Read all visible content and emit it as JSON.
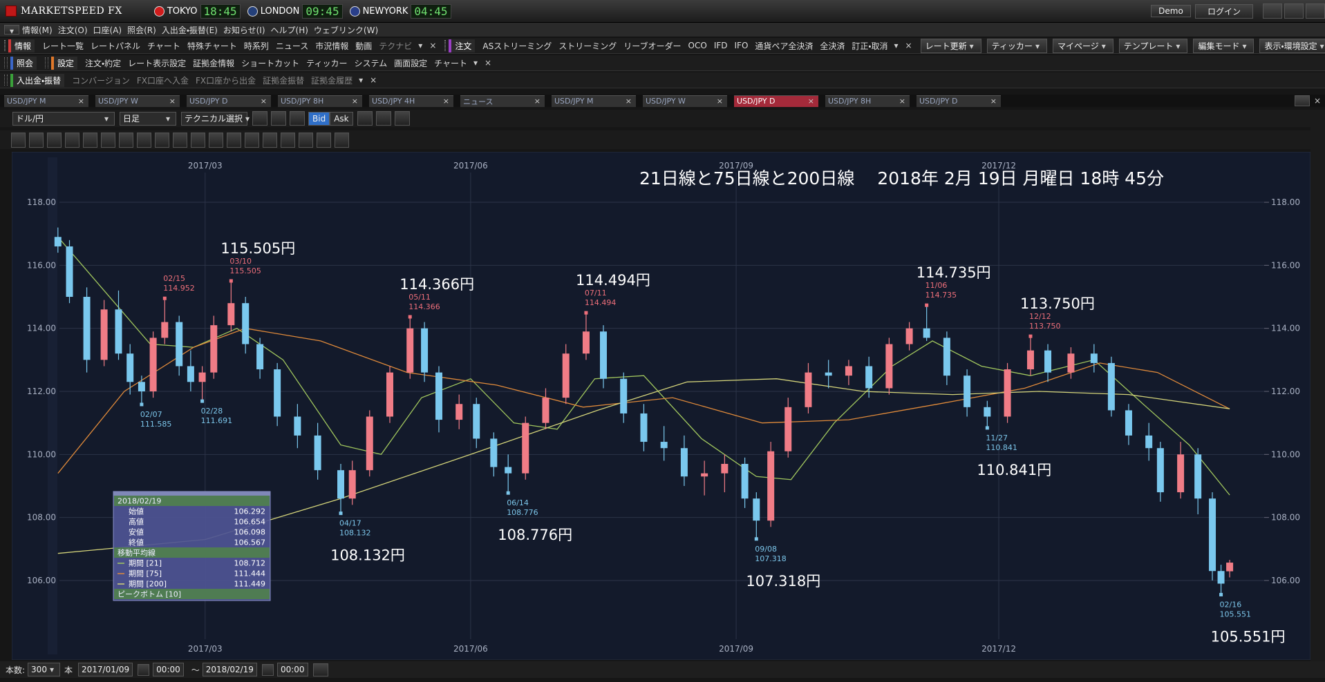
{
  "app": {
    "logo": "MARKETSPEED FX",
    "clocks": [
      {
        "city": "TOKYO",
        "time": "18:45"
      },
      {
        "city": "LONDON",
        "time": "09:45"
      },
      {
        "city": "NEWYORK",
        "time": "04:45"
      }
    ],
    "account": [
      "Demo",
      "ログイン"
    ],
    "menu": [
      "情報(M)",
      "注文(O)",
      "口座(A)",
      "照会(R)",
      "入出金・振替(E)",
      "お知らせ(I)",
      "ヘルプ(H)",
      "ウェブリンク(W)"
    ],
    "toolbars": [
      {
        "groups": [
          {
            "label": "情報",
            "color": "#d03a3a",
            "items": [
              "レート一覧",
              "レートパネル",
              "チャート",
              "特殊チャート",
              "時系列",
              "ニュース",
              "市況情報",
              "動画",
              "テクナビ"
            ]
          },
          {
            "label": "注文",
            "color": "#9a3fc4",
            "items": [
              "ASストリーミング",
              "ストリーミング",
              "リーブオーダー",
              "OCO",
              "IFD",
              "IFO",
              "通貨ペア全決済",
              "全決済",
              "訂正・取消"
            ]
          }
        ],
        "right": [
          "レート更新",
          "ティッカー",
          "マイページ",
          "テンプレート",
          "編集モード",
          "表示・環境設定"
        ]
      },
      {
        "groups": [
          {
            "label": "照会",
            "color": "#3a66c8",
            "items": []
          },
          {
            "label": "設定",
            "color": "#e0782a",
            "items": [
              "注文・約定",
              "レート表示設定",
              "証拠金情報",
              "ショートカット",
              "ティッカー",
              "システム",
              "画面設定",
              "チャート"
            ]
          }
        ],
        "right": []
      },
      {
        "groups": [
          {
            "label": "入出金・振替",
            "color": "#3aa03a",
            "items": [
              "コンバージョン",
              "FX口座へ入金",
              "FX口座から出金",
              "証拠金振替",
              "証拠金履歴"
            ]
          }
        ],
        "right": []
      }
    ],
    "tabs": [
      "USD/JPY M",
      "USD/JPY W",
      "USD/JPY D",
      "USD/JPY 8H",
      "USD/JPY 4H",
      "ニュース",
      "USD/JPY M",
      "USD/JPY W",
      "USD/JPY D",
      "USD/JPY 8H",
      "USD/JPY D"
    ],
    "active_tab": 8,
    "chart_toolbar": {
      "pair": "ドル/円",
      "period": "日足",
      "technical": "テクニカル選択",
      "bid": "Bid",
      "ask": "Ask"
    },
    "info": {
      "labels": [
        "始値",
        "高値",
        "安値",
        "終値"
      ],
      "ma_header": "移動平均線",
      "peak": "ピークボトム [10]"
    },
    "bottom": {
      "count_label": "本数:",
      "count": 300,
      "unit": "本",
      "from_time": "00:00",
      "tilde": "〜",
      "to_time": "00:00"
    }
  },
  "chart_data": {
    "type": "candlestick",
    "title": "21日線と75日線と200日線　 2018年 2月 19日 月曜日 18時 45分",
    "xlim": [
      "2016/12/24",
      "2018/03/19"
    ],
    "xticks": [
      {
        "value": "2017/03/01",
        "label": "2017/03"
      },
      {
        "value": "2017/06/01",
        "label": "2017/06"
      },
      {
        "value": "2017/09/01",
        "label": "2017/09"
      },
      {
        "value": "2017/12/01",
        "label": "2017/12"
      }
    ],
    "ylim": [
      103.48,
      119.6
    ],
    "yticks": [
      {
        "value": 106,
        "label": "106.00"
      },
      {
        "value": 108,
        "label": "108.00"
      },
      {
        "value": 110,
        "label": "110.00"
      },
      {
        "value": 112,
        "label": "112.00"
      },
      {
        "value": 114,
        "label": "114.00"
      },
      {
        "value": 116,
        "label": "116.00"
      },
      {
        "value": 118,
        "label": "118.00"
      }
    ],
    "grid": true,
    "up_color": "#f07c86",
    "down_color": "#7ac8ee",
    "candles": {
      "date": [
        "2017/01/09",
        "2017/01/13",
        "2017/01/19",
        "2017/01/25",
        "2017/01/30",
        "2017/02/03",
        "2017/02/07",
        "2017/02/11",
        "2017/02/15",
        "2017/02/20",
        "2017/02/24",
        "2017/02/28",
        "2017/03/04",
        "2017/03/10",
        "2017/03/15",
        "2017/03/20",
        "2017/03/26",
        "2017/04/02",
        "2017/04/09",
        "2017/04/17",
        "2017/04/21",
        "2017/04/27",
        "2017/05/04",
        "2017/05/11",
        "2017/05/16",
        "2017/05/21",
        "2017/05/28",
        "2017/06/03",
        "2017/06/09",
        "2017/06/14",
        "2017/06/20",
        "2017/06/27",
        "2017/07/04",
        "2017/07/11",
        "2017/07/17",
        "2017/07/24",
        "2017/07/31",
        "2017/08/07",
        "2017/08/14",
        "2017/08/21",
        "2017/08/28",
        "2017/09/04",
        "2017/09/08",
        "2017/09/13",
        "2017/09/19",
        "2017/09/26",
        "2017/10/03",
        "2017/10/10",
        "2017/10/17",
        "2017/10/24",
        "2017/10/31",
        "2017/11/06",
        "2017/11/13",
        "2017/11/20",
        "2017/11/27",
        "2017/12/04",
        "2017/12/12",
        "2017/12/18",
        "2017/12/26",
        "2018/01/03",
        "2018/01/09",
        "2018/01/15",
        "2018/01/22",
        "2018/01/26",
        "2018/02/02",
        "2018/02/08",
        "2018/02/13",
        "2018/02/16",
        "2018/02/19"
      ],
      "open": [
        116.9,
        116.6,
        115,
        113,
        114.6,
        113.2,
        112.3,
        112,
        113.7,
        114.2,
        112.8,
        112.3,
        112.6,
        114.1,
        114.8,
        113.5,
        112.7,
        111.2,
        110.6,
        109.5,
        108.6,
        109.5,
        111.2,
        112.6,
        114,
        112.6,
        111.1,
        111.6,
        110.5,
        109.6,
        109.4,
        111,
        111.8,
        113.2,
        113.9,
        112.4,
        111.3,
        110.4,
        110.2,
        109.3,
        109.4,
        109.7,
        108.6,
        107.9,
        110.1,
        111.5,
        112.6,
        112.5,
        112.8,
        112.1,
        113.5,
        114,
        113.7,
        112.5,
        111.5,
        111.2,
        112.7,
        113.3,
        112.6,
        113.2,
        112.9,
        111.4,
        110.6,
        110.2,
        108.8,
        110,
        108.6,
        106.3,
        106.292
      ],
      "high": [
        117.2,
        116.8,
        115.3,
        114.9,
        115.2,
        113.5,
        112.5,
        113.9,
        114.952,
        114.4,
        113.3,
        112.8,
        114.4,
        115.505,
        115,
        113.7,
        112.9,
        111.6,
        111,
        109.7,
        109.8,
        111.4,
        112.8,
        114.366,
        114.2,
        112.8,
        111.9,
        111.8,
        110.7,
        110,
        111.2,
        112.1,
        113.5,
        114.494,
        114.1,
        112.6,
        111.6,
        110.9,
        110.6,
        109.8,
        110,
        109.9,
        108.8,
        110.4,
        111.8,
        112.9,
        113,
        113,
        113.1,
        113.7,
        114.2,
        114.735,
        113.9,
        112.7,
        111.7,
        112.9,
        113.75,
        113.5,
        113.4,
        113.5,
        113.1,
        111.6,
        111,
        110.4,
        110.4,
        110.2,
        108.8,
        106.5,
        106.654
      ],
      "low": [
        116.4,
        114.8,
        112.6,
        112.8,
        113,
        111.9,
        111.585,
        111.8,
        113.5,
        112.5,
        112,
        111.691,
        112.4,
        113.9,
        113.2,
        112.4,
        110.9,
        110.2,
        109.2,
        108.132,
        108.4,
        109.3,
        111,
        112.4,
        112.3,
        110.7,
        110.8,
        110.2,
        109.3,
        108.776,
        109.2,
        110.8,
        111.6,
        113,
        112.1,
        111,
        110.1,
        109.8,
        109,
        108.7,
        108.8,
        108.3,
        107.318,
        107.7,
        109.9,
        111.3,
        112.1,
        112.2,
        111.8,
        111.9,
        113.3,
        113.6,
        112.2,
        111.2,
        110.841,
        111,
        112.5,
        112.3,
        112.4,
        112.6,
        111.2,
        110.3,
        109.8,
        108.5,
        108.6,
        108.1,
        106,
        105.551,
        106.098
      ],
      "close": [
        116.6,
        115,
        113,
        114.6,
        113.2,
        112.3,
        112,
        113.7,
        114.2,
        112.8,
        112.3,
        112.6,
        114.1,
        114.8,
        113.5,
        112.7,
        111.2,
        110.6,
        109.5,
        108.6,
        109.5,
        111.2,
        112.6,
        114,
        112.6,
        111.1,
        111.6,
        110.5,
        109.6,
        109.4,
        111,
        111.8,
        113.2,
        113.9,
        112.4,
        111.3,
        110.4,
        110.2,
        109.3,
        109.4,
        109.7,
        108.6,
        107.9,
        110.1,
        111.5,
        112.6,
        112.5,
        112.8,
        112.1,
        113.5,
        114,
        113.7,
        112.5,
        111.5,
        111.2,
        112.7,
        113.3,
        112.6,
        113.2,
        112.9,
        111.4,
        110.6,
        110.2,
        108.8,
        110,
        108.6,
        106.3,
        105.9,
        106.567
      ]
    },
    "series": [
      {
        "name": "期間 [21]",
        "color": "#a2c85e",
        "x": [
          "2017/01/09",
          "2017/01/25",
          "2017/02/10",
          "2017/02/25",
          "2017/03/12",
          "2017/03/28",
          "2017/04/17",
          "2017/05/01",
          "2017/05/15",
          "2017/06/01",
          "2017/06/16",
          "2017/07/01",
          "2017/07/14",
          "2017/07/31",
          "2017/08/20",
          "2017/09/08",
          "2017/09/20",
          "2017/10/05",
          "2017/10/25",
          "2017/11/08",
          "2017/11/25",
          "2017/12/12",
          "2018/01/03",
          "2018/01/20",
          "2018/02/05",
          "2018/02/19"
        ],
        "values": [
          116.9,
          115.2,
          113.5,
          113.4,
          114,
          113,
          110.3,
          110,
          111.8,
          112.4,
          111,
          110.8,
          112.4,
          112.5,
          110.5,
          109.3,
          109.2,
          111,
          112.8,
          113.6,
          112.8,
          112.5,
          113,
          111.6,
          110.3,
          108.712
        ]
      },
      {
        "name": "期間 [75]",
        "color": "#e08a3a",
        "x": [
          "2017/01/09",
          "2017/02/01",
          "2017/02/25",
          "2017/03/15",
          "2017/04/10",
          "2017/05/10",
          "2017/06/10",
          "2017/07/10",
          "2017/08/10",
          "2017/09/10",
          "2017/10/10",
          "2017/11/10",
          "2017/12/10",
          "2018/01/05",
          "2018/01/25",
          "2018/02/19"
        ],
        "values": [
          109.4,
          112,
          113.4,
          114,
          113.6,
          112.6,
          112.2,
          111.5,
          111.8,
          111,
          111.1,
          111.6,
          112.1,
          112.9,
          112.6,
          111.444
        ]
      },
      {
        "name": "期間 [200]",
        "color": "#d4d47a",
        "x": [
          "2017/01/09",
          "2017/03/01",
          "2017/04/17",
          "2017/06/01",
          "2017/07/15",
          "2017/08/15",
          "2017/09/15",
          "2017/10/15",
          "2017/11/15",
          "2017/12/15",
          "2018/01/15",
          "2018/02/19"
        ],
        "values": [
          106.86,
          107.3,
          108.6,
          110,
          111.4,
          112.3,
          112.4,
          112,
          111.9,
          112,
          111.9,
          111.449
        ]
      }
    ],
    "annotations": [
      {
        "date": "02/07",
        "price": "111.585",
        "type": "low"
      },
      {
        "date": "02/15",
        "price": "114.952",
        "type": "high"
      },
      {
        "date": "02/28",
        "price": "111.691",
        "type": "low"
      },
      {
        "date": "03/10",
        "price": "115.505",
        "type": "high",
        "big": "115.505円"
      },
      {
        "date": "04/17",
        "price": "108.132",
        "type": "low",
        "big": "108.132円"
      },
      {
        "date": "05/11",
        "price": "114.366",
        "type": "high",
        "big": "114.366円"
      },
      {
        "date": "06/14",
        "price": "108.776",
        "type": "low",
        "big": "108.776円"
      },
      {
        "date": "07/11",
        "price": "114.494",
        "type": "high",
        "big": "114.494円"
      },
      {
        "date": "09/08",
        "price": "107.318",
        "type": "low",
        "big": "107.318円"
      },
      {
        "date": "11/06",
        "price": "114.735",
        "type": "high",
        "big": "114.735円"
      },
      {
        "date": "11/27",
        "price": "110.841",
        "type": "low",
        "big": "110.841円"
      },
      {
        "date": "12/12",
        "price": "113.750",
        "type": "high",
        "big": "113.750円"
      },
      {
        "date": "02/16",
        "price": "105.551",
        "type": "low",
        "big": "105.551円"
      }
    ]
  }
}
